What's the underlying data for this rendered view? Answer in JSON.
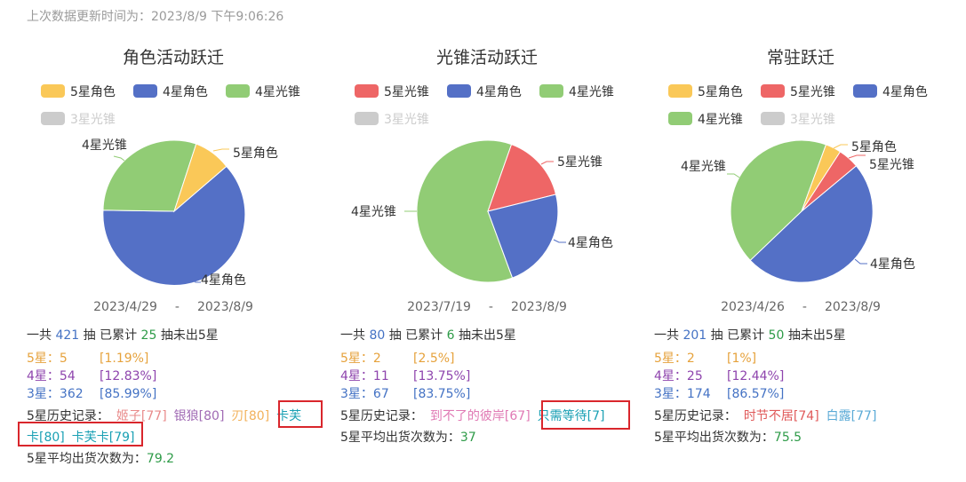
{
  "updated_text": "上次数据更新时间为：2023/8/9 下午9:06:26",
  "columns": [
    {
      "title": "角色活动跃迁",
      "legend": [
        {
          "label": "5星角色",
          "color": "#fac858",
          "off": false
        },
        {
          "label": "4星角色",
          "color": "#5470c6",
          "off": false
        },
        {
          "label": "4星光锥",
          "color": "#91cc75",
          "off": false
        },
        {
          "label": "3星光锥",
          "color": "#cccccc",
          "off": true
        }
      ],
      "pie_labels": {
        "a": "5星角色",
        "b": "4星角色",
        "c": "4星光锥"
      },
      "date_start": "2023/4/29",
      "date_sep": "-",
      "date_end": "2023/8/9",
      "total_prefix": "一共",
      "total": "421",
      "total_mid": "抽 已累计",
      "pity": "25",
      "total_suffix": "抽未出5星",
      "five_label": "5星：5",
      "five_pct": "[1.19%]",
      "four_label": "4星：54",
      "four_pct": "[12.83%]",
      "three_label": "3星：362",
      "three_pct": "[85.99%]",
      "hist_label": "5星历史记录：",
      "hist": [
        {
          "text": "姬子[77]",
          "cls": "tag-red"
        },
        {
          "text": "银狼[80]",
          "cls": "tag-purple"
        },
        {
          "text": "刃[80]",
          "cls": "tag-orange"
        },
        {
          "text": "卡芙",
          "cls": "tag-teal"
        }
      ],
      "hist2": [
        {
          "text": "卡[80]",
          "cls": "tag-teal"
        },
        {
          "text": "卡芙卡[79]",
          "cls": "tag-teal"
        }
      ],
      "avg_label": "5星平均出货次数为：",
      "avg": "79.2"
    },
    {
      "title": "光锥活动跃迁",
      "legend": [
        {
          "label": "5星光锥",
          "color": "#ee6666",
          "off": false
        },
        {
          "label": "4星角色",
          "color": "#5470c6",
          "off": false
        },
        {
          "label": "4星光锥",
          "color": "#91cc75",
          "off": false
        },
        {
          "label": "3星光锥",
          "color": "#cccccc",
          "off": true
        }
      ],
      "pie_labels": {
        "a": "5星光锥",
        "b": "4星角色",
        "c": "4星光锥"
      },
      "date_start": "2023/7/19",
      "date_sep": "-",
      "date_end": "2023/8/9",
      "total_prefix": "一共",
      "total": "80",
      "total_mid": "抽 已累计",
      "pity": "6",
      "total_suffix": "抽未出5星",
      "five_label": "5星：2",
      "five_pct": "[2.5%]",
      "four_label": "4星：11",
      "four_pct": "[13.75%]",
      "three_label": "3星：67",
      "three_pct": "[83.75%]",
      "hist_label": "5星历史记录：",
      "hist": [
        {
          "text": "到不了的彼岸[67]",
          "cls": "tag-pink"
        },
        {
          "text": "只需等待[7]",
          "cls": "tag-teal"
        }
      ],
      "avg_label": "5星平均出货次数为：",
      "avg": "37"
    },
    {
      "title": "常驻跃迁",
      "legend": [
        {
          "label": "5星角色",
          "color": "#fac858",
          "off": false
        },
        {
          "label": "5星光锥",
          "color": "#ee6666",
          "off": false
        },
        {
          "label": "4星角色",
          "color": "#5470c6",
          "off": false
        },
        {
          "label": "4星光锥",
          "color": "#91cc75",
          "off": false
        },
        {
          "label": "3星光锥",
          "color": "#cccccc",
          "off": true
        }
      ],
      "pie_labels": {
        "a": "5星角色",
        "b": "5星光锥",
        "c": "4星光锥",
        "d": "4星角色"
      },
      "date_start": "2023/4/26",
      "date_sep": "-",
      "date_end": "2023/8/9",
      "total_prefix": "一共",
      "total": "201",
      "total_mid": "抽 已累计",
      "pity": "50",
      "total_suffix": "抽未出5星",
      "five_label": "5星：2",
      "five_pct": "[1%]",
      "four_label": "4星：25",
      "four_pct": "[12.44%]",
      "three_label": "3星：174",
      "three_pct": "[86.57%]",
      "hist_label": "5星历史记录：",
      "hist": [
        {
          "text": "时节不居[74]",
          "cls": "tag-red2"
        },
        {
          "text": "白露[77]",
          "cls": "tag-lblue"
        }
      ],
      "avg_label": "5星平均出货次数为：",
      "avg": "75.5"
    }
  ]
}
